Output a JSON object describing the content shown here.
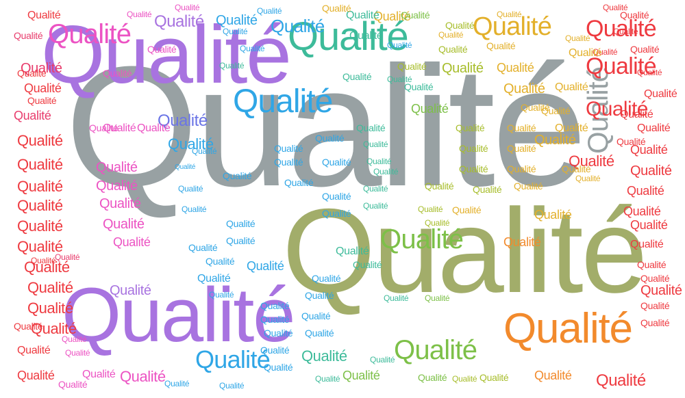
{
  "word": "Qualité",
  "colors": {
    "gray": "#98a1a3",
    "olive": "#a2ad6a",
    "purple": "#a873e0",
    "teal": "#3dbb9a",
    "blue": "#2fa6e6",
    "pink": "#ec53c3",
    "red": "#ee3a40",
    "magenta": "#e83c6c",
    "orange": "#f28a2c",
    "gold": "#e3b02b",
    "green": "#7dc048",
    "lime": "#a7bd2b",
    "indigo": "#6a74e6"
  }
}
